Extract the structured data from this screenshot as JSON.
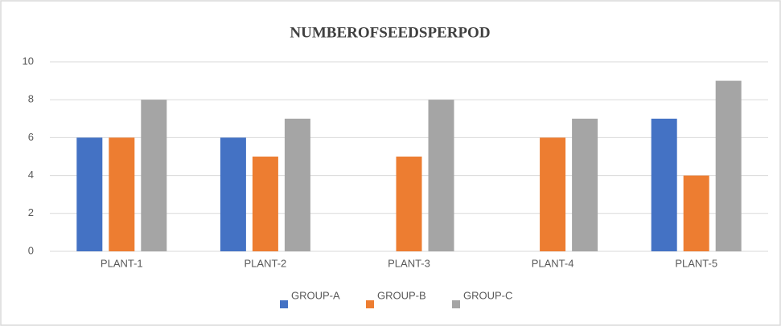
{
  "chart_data": {
    "type": "bar",
    "title": "NUMBEROFSEEDSPERPOD",
    "categories": [
      "PLANT-1",
      "PLANT-2",
      "PLANT-3",
      "PLANT-4",
      "PLANT-5"
    ],
    "series": [
      {
        "name": "GROUP-A",
        "color": "#4472c4",
        "values": [
          6,
          6,
          0,
          0,
          7
        ]
      },
      {
        "name": "GROUP-B",
        "color": "#ed7d31",
        "values": [
          6,
          5,
          5,
          6,
          4
        ]
      },
      {
        "name": "GROUP-C",
        "color": "#a5a5a5",
        "values": [
          8,
          7,
          8,
          7,
          9
        ]
      }
    ],
    "ylim": [
      0,
      10
    ],
    "yticks": [
      0,
      2,
      4,
      6,
      8,
      10
    ],
    "grid": true,
    "legend": "bottom"
  }
}
